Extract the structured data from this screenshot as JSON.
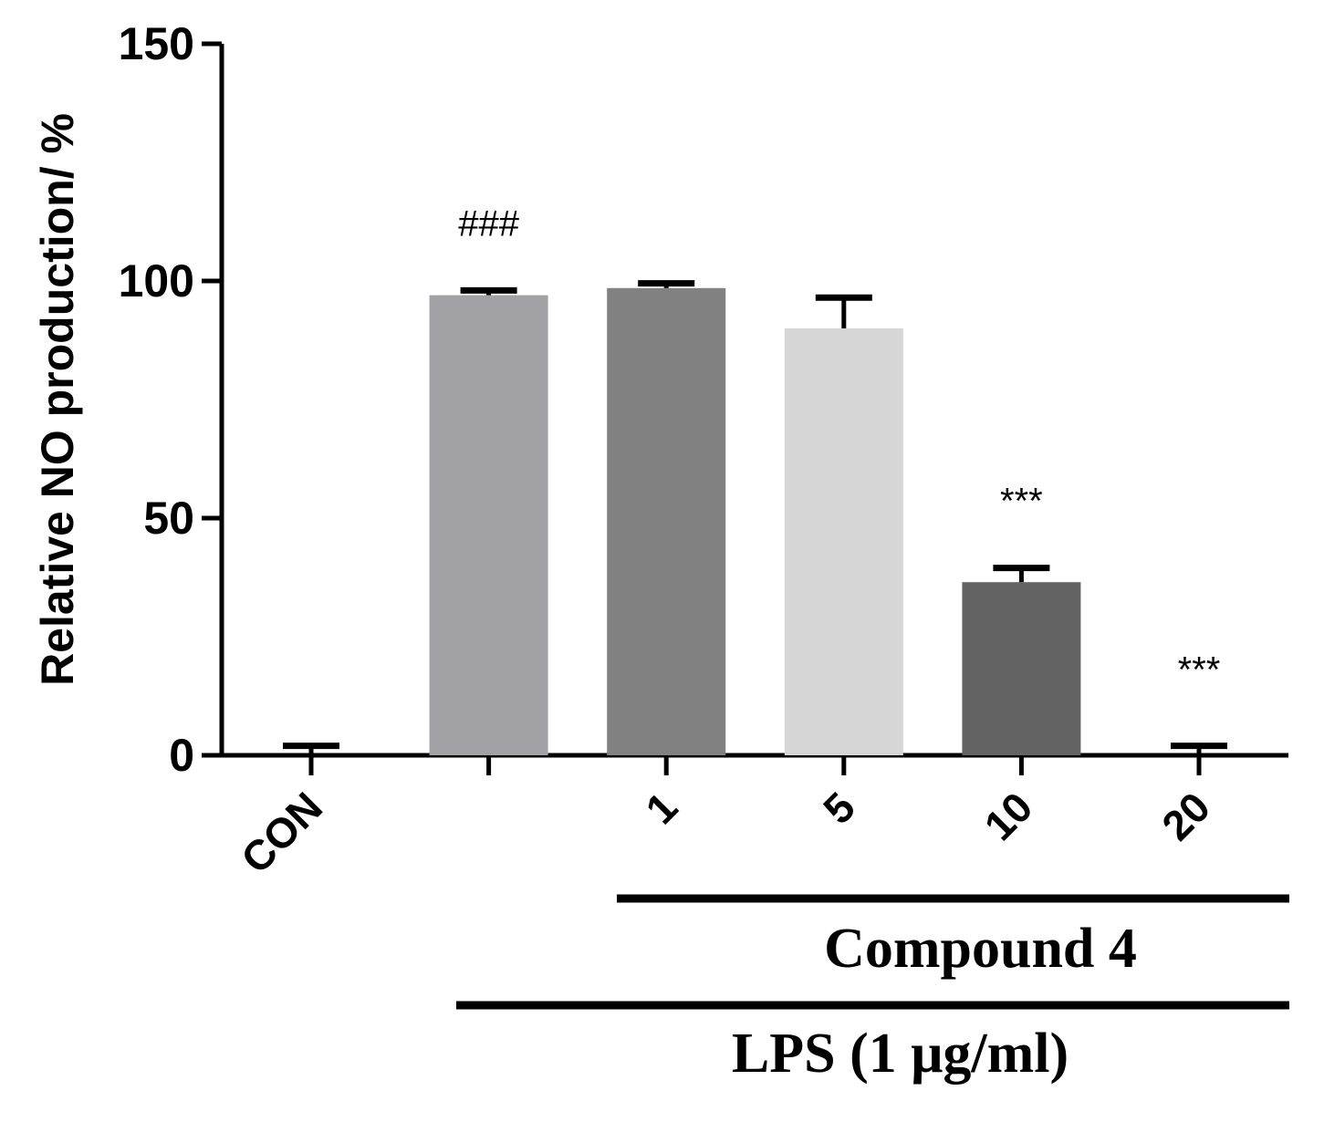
{
  "chart_data": {
    "type": "bar",
    "title": "",
    "xlabel": "",
    "ylabel": "Relative NO production/ %",
    "ylim": [
      0,
      150
    ],
    "yticks": [
      0,
      50,
      100,
      150
    ],
    "yticks_text": [
      "0",
      "50",
      "100",
      "150"
    ],
    "categories": [
      "CON",
      "",
      "1",
      "5",
      "10",
      "20"
    ],
    "values": [
      0,
      97,
      98.5,
      90,
      36.5,
      0
    ],
    "errors": [
      2,
      1,
      1,
      6.5,
      3,
      2
    ],
    "annotations": [
      "",
      "###",
      "",
      "",
      "***",
      "***"
    ],
    "colors": [
      "#a2a1a6",
      "#a2a1a6",
      "#818181",
      "#d6d6d6",
      "#636363",
      "#636363"
    ],
    "group_labels": [
      {
        "text": "Compound 4",
        "from_index": 2,
        "to_index": 5
      },
      {
        "text": "LPS (1 μg/ml)",
        "from_index": 1,
        "to_index": 5
      }
    ],
    "grid": false
  }
}
